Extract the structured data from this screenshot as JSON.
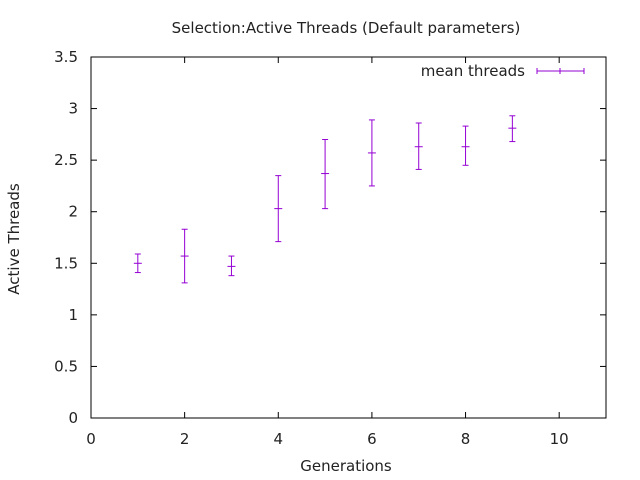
{
  "chart_data": {
    "type": "scatter",
    "title": "Selection:Active Threads (Default parameters)",
    "xlabel": "Generations",
    "ylabel": "Active Threads",
    "xlim": [
      0,
      11
    ],
    "ylim": [
      0,
      3.5
    ],
    "x_ticks": [
      0,
      2,
      4,
      6,
      8,
      10
    ],
    "y_ticks": [
      0,
      0.5,
      1,
      1.5,
      2,
      2.5,
      3,
      3.5
    ],
    "x_tick_labels": [
      "0",
      "2",
      "4",
      "6",
      "8",
      "10"
    ],
    "y_tick_labels": [
      "0",
      "0.5",
      "1",
      "1.5",
      "2",
      "2.5",
      "3",
      "3.5"
    ],
    "grid": false,
    "legend_position": "top-right",
    "series": [
      {
        "name": "mean threads",
        "color": "#9400d3",
        "style": "errorbars",
        "points": [
          {
            "x": 1,
            "y": 1.5,
            "ylow": 1.41,
            "yhigh": 1.59
          },
          {
            "x": 2,
            "y": 1.57,
            "ylow": 1.31,
            "yhigh": 1.83
          },
          {
            "x": 3,
            "y": 1.47,
            "ylow": 1.38,
            "yhigh": 1.57
          },
          {
            "x": 4,
            "y": 2.03,
            "ylow": 1.71,
            "yhigh": 2.35
          },
          {
            "x": 5,
            "y": 2.37,
            "ylow": 2.03,
            "yhigh": 2.7
          },
          {
            "x": 6,
            "y": 2.57,
            "ylow": 2.25,
            "yhigh": 2.89
          },
          {
            "x": 7,
            "y": 2.63,
            "ylow": 2.41,
            "yhigh": 2.86
          },
          {
            "x": 8,
            "y": 2.63,
            "ylow": 2.45,
            "yhigh": 2.83
          },
          {
            "x": 9,
            "y": 2.81,
            "ylow": 2.68,
            "yhigh": 2.93
          }
        ]
      }
    ]
  }
}
